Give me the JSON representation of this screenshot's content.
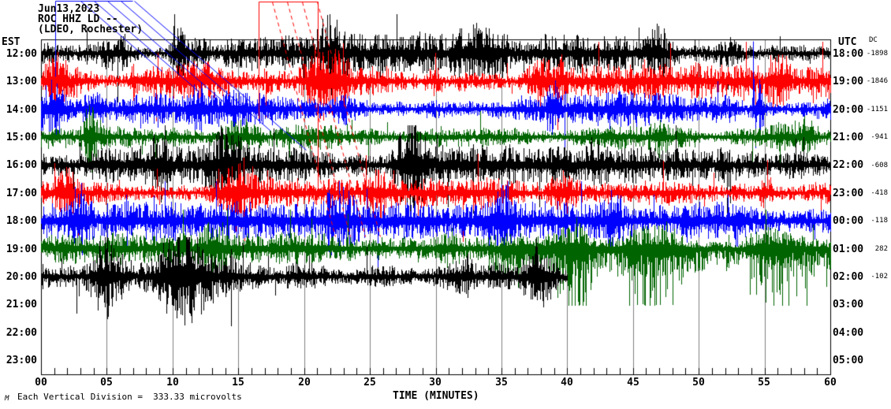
{
  "title": {
    "line1": "Jun13,2023",
    "line2": "ROC HHZ LD --",
    "line3": "(LDEO, Rochester)"
  },
  "footer": {
    "logo_mark": "M",
    "scale_note": "Each Vertical Division =  333.33 microvolts"
  },
  "chart_data": {
    "type": "line",
    "subtype": "webicorder-seismogram",
    "station": "ROC HHZ LD",
    "network_note": "(LDEO, Rochester)",
    "date": "Jun13,2023",
    "left_axis_header": "EST",
    "right_axis_header": "UTC",
    "dc_header": "DC",
    "x_axis": {
      "label": "TIME (MINUTES)",
      "ticks": [
        "00",
        "05",
        "10",
        "15",
        "20",
        "25",
        "30",
        "35",
        "40",
        "45",
        "50",
        "55",
        "60"
      ],
      "minor_tick_every_minutes": 1,
      "major_tick_every_minutes": 5,
      "range_minutes": [
        0,
        60
      ]
    },
    "grid": {
      "vertical_5min_lines": true,
      "gridline_color": "#808080"
    },
    "trace_colors_cycle": [
      "#000000",
      "#ff0000",
      "#0000ff",
      "#006400"
    ],
    "rows": [
      {
        "est": "12:00",
        "utc": "18:00",
        "dc": "-1898",
        "color": "#000000",
        "end_min": 60,
        "amp": 10,
        "bursts": [
          {
            "m": 6,
            "w": 1.5,
            "k": 3.2
          },
          {
            "m": 10.5,
            "w": 1,
            "k": 2.8
          },
          {
            "m": 22,
            "w": 2,
            "k": 2.2
          },
          {
            "m": 33.5,
            "w": 2.5,
            "k": 3.4
          },
          {
            "m": 47,
            "w": 1.5,
            "k": 2.2
          },
          {
            "m": 52,
            "w": 2,
            "k": 2.6
          }
        ]
      },
      {
        "est": "13:00",
        "utc": "19:00",
        "dc": "-1846",
        "color": "#ff0000",
        "end_min": 60,
        "amp": 11,
        "bursts": [
          {
            "m": 1.5,
            "w": 2,
            "k": 2.6
          },
          {
            "m": 7,
            "w": 1,
            "k": 2
          },
          {
            "m": 21.5,
            "w": 2.5,
            "k": 3.0
          },
          {
            "m": 30,
            "w": 1,
            "k": 2
          },
          {
            "m": 38.5,
            "w": 2,
            "k": 2.4
          },
          {
            "m": 56,
            "w": 1.5,
            "k": 2.2
          }
        ]
      },
      {
        "est": "14:00",
        "utc": "20:00",
        "dc": "-1151",
        "color": "#0000ff",
        "end_min": 60,
        "amp": 10,
        "bursts": [
          {
            "m": 0.8,
            "w": 1.5,
            "k": 3.0
          },
          {
            "m": 12,
            "w": 1,
            "k": 2
          },
          {
            "m": 23,
            "w": 1.5,
            "k": 2.2
          },
          {
            "m": 39,
            "w": 1,
            "k": 2.4
          },
          {
            "m": 54.5,
            "w": 0.7,
            "k": 3.5
          }
        ]
      },
      {
        "est": "15:00",
        "utc": "21:00",
        "dc": "-941",
        "color": "#006400",
        "end_min": 60,
        "amp": 8,
        "bursts": [
          {
            "m": 3.7,
            "w": 0.7,
            "k": 3.4
          },
          {
            "m": 15,
            "w": 2,
            "k": 2.4
          },
          {
            "m": 22,
            "w": 1.5,
            "k": 2.0
          },
          {
            "m": 47,
            "w": 1.5,
            "k": 2.0
          },
          {
            "m": 58,
            "w": 1.5,
            "k": 2.4
          }
        ]
      },
      {
        "est": "16:00",
        "utc": "22:00",
        "dc": "-608",
        "color": "#000000",
        "end_min": 60,
        "amp": 10,
        "bursts": [
          {
            "m": 9,
            "w": 1.5,
            "k": 2.2
          },
          {
            "m": 14,
            "w": 2,
            "k": 2.6
          },
          {
            "m": 28,
            "w": 2,
            "k": 2.8
          },
          {
            "m": 42,
            "w": 1,
            "k": 2
          },
          {
            "m": 51.5,
            "w": 1.5,
            "k": 2.4
          }
        ]
      },
      {
        "est": "17:00",
        "utc": "23:00",
        "dc": "-418",
        "color": "#ff0000",
        "end_min": 60,
        "amp": 11,
        "bursts": [
          {
            "m": 2,
            "w": 1.5,
            "k": 2.4
          },
          {
            "m": 14.5,
            "w": 2.5,
            "k": 3.0
          },
          {
            "m": 26,
            "w": 2,
            "k": 2.4
          },
          {
            "m": 40,
            "w": 2,
            "k": 2.6
          },
          {
            "m": 55,
            "w": 1.5,
            "k": 2.2
          }
        ]
      },
      {
        "est": "18:00",
        "utc": "00:00",
        "dc": "-118",
        "color": "#0000ff",
        "end_min": 60,
        "amp": 10,
        "bursts": [
          {
            "m": 3,
            "w": 1.5,
            "k": 2.2
          },
          {
            "m": 23,
            "w": 2,
            "k": 2.6
          },
          {
            "m": 35,
            "w": 1.5,
            "k": 2.2
          },
          {
            "m": 43.5,
            "w": 1,
            "k": 2.8
          },
          {
            "m": 53,
            "w": 1,
            "k": 2.2
          }
        ]
      },
      {
        "est": "19:00",
        "utc": "01:00",
        "dc": "282",
        "color": "#006400",
        "end_min": 60,
        "amp": 8,
        "down_bias": {
          "after": 34,
          "k": 2.0
        },
        "bursts": [
          {
            "m": 13,
            "w": 2,
            "k": 2.0
          },
          {
            "m": 31,
            "w": 1.5,
            "k": 2.0
          },
          {
            "m": 40.5,
            "w": 2,
            "k": 2.4
          },
          {
            "m": 47,
            "w": 3,
            "k": 2.4
          },
          {
            "m": 55,
            "w": 3,
            "k": 2.4
          }
        ]
      },
      {
        "est": "20:00",
        "utc": "02:00",
        "dc": "-102",
        "color": "#000000",
        "end_min": 40,
        "amp": 11,
        "bursts": [
          {
            "m": 5,
            "w": 2,
            "k": 2.6
          },
          {
            "m": 11,
            "w": 2.5,
            "k": 3.0
          },
          {
            "m": 20,
            "w": 2,
            "k": 2.4
          },
          {
            "m": 31.5,
            "w": 3,
            "k": 2.2
          },
          {
            "m": 38,
            "w": 2,
            "k": 2.6
          }
        ]
      },
      {
        "est": "21:00",
        "utc": "03:00",
        "dc": "",
        "color": "",
        "end_min": 0,
        "amp": 0,
        "bursts": []
      },
      {
        "est": "22:00",
        "utc": "04:00",
        "dc": "",
        "color": "",
        "end_min": 0,
        "amp": 0,
        "bursts": []
      },
      {
        "est": "23:00",
        "utc": "05:00",
        "dc": "",
        "color": "",
        "end_min": 0,
        "amp": 0,
        "bursts": []
      }
    ],
    "annotations": {
      "blue_event_marker": {
        "color": "#0000ff",
        "solid_lines": [
          [
            70,
            1,
            168,
            1
          ],
          [
            70,
            1,
            70,
            97
          ],
          [
            955,
            52,
            955,
            148
          ]
        ],
        "fan_lines": [
          [
            102,
            1,
            205,
            90
          ],
          [
            119,
            1,
            251,
            115
          ],
          [
            136,
            1,
            296,
            140
          ],
          [
            153,
            1,
            342,
            165
          ],
          [
            170,
            1,
            388,
            190
          ]
        ]
      },
      "red_event_marker": {
        "color": "#ff0000",
        "solid_lines": [
          [
            328,
            2,
            403,
            2
          ],
          [
            328,
            2,
            328,
            150
          ],
          [
            403,
            2,
            403,
            250
          ]
        ],
        "dashed_lines": [
          [
            345,
            2,
            425,
            300
          ],
          [
            364,
            2,
            444,
            300
          ],
          [
            383,
            2,
            463,
            300
          ],
          [
            402,
            2,
            482,
            300
          ]
        ]
      }
    }
  }
}
